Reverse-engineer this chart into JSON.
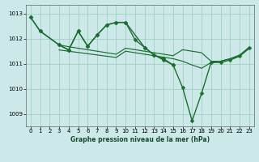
{
  "background_color": "#cce8e8",
  "grid_color": "#99ccbb",
  "line_color": "#1a6e2e",
  "title": "Graphe pression niveau de la mer (hPa)",
  "xlim": [
    -0.5,
    23.5
  ],
  "ylim": [
    1008.5,
    1013.35
  ],
  "yticks": [
    1009,
    1010,
    1011,
    1012,
    1013
  ],
  "xticks": [
    0,
    1,
    2,
    3,
    4,
    5,
    6,
    7,
    8,
    9,
    10,
    11,
    12,
    13,
    14,
    15,
    16,
    17,
    18,
    19,
    20,
    21,
    22,
    23
  ],
  "series": [
    {
      "x": [
        0,
        1,
        3,
        4,
        5,
        6,
        7,
        8,
        9,
        10,
        12,
        13,
        14,
        15
      ],
      "y": [
        1012.85,
        1012.3,
        1011.75,
        1011.55,
        1012.3,
        1011.7,
        1012.15,
        1012.55,
        1012.65,
        1012.65,
        1011.65,
        1011.35,
        1011.2,
        1010.95
      ],
      "marker": "D",
      "markersize": 2.5,
      "linewidth": 1.0
    },
    {
      "x": [
        3,
        4,
        5,
        6,
        7,
        8,
        9,
        10,
        11,
        12,
        13,
        14,
        15,
        16,
        17,
        18,
        19,
        20,
        21,
        22,
        23
      ],
      "y": [
        1011.75,
        1011.68,
        1011.62,
        1011.56,
        1011.5,
        1011.44,
        1011.38,
        1011.62,
        1011.56,
        1011.5,
        1011.44,
        1011.38,
        1011.32,
        1011.56,
        1011.5,
        1011.44,
        1011.1,
        1011.1,
        1011.2,
        1011.35,
        1011.65
      ],
      "marker": null,
      "markersize": 0,
      "linewidth": 0.85
    },
    {
      "x": [
        3,
        4,
        5,
        6,
        7,
        8,
        9,
        10,
        11,
        12,
        13,
        14,
        15,
        16,
        17,
        18,
        19,
        20,
        21,
        22,
        23
      ],
      "y": [
        1011.55,
        1011.5,
        1011.45,
        1011.4,
        1011.35,
        1011.3,
        1011.25,
        1011.5,
        1011.44,
        1011.38,
        1011.32,
        1011.26,
        1011.2,
        1011.1,
        1010.95,
        1010.82,
        1011.05,
        1011.1,
        1011.2,
        1011.3,
        1011.6
      ],
      "marker": null,
      "markersize": 0,
      "linewidth": 0.85
    },
    {
      "x": [
        0,
        1,
        3,
        4,
        5,
        6,
        7,
        8,
        9,
        10,
        11,
        12,
        13,
        14,
        15,
        16,
        17,
        18,
        19,
        20,
        21,
        22,
        23
      ],
      "y": [
        1012.85,
        1012.3,
        1011.75,
        1011.55,
        1012.3,
        1011.7,
        1012.15,
        1012.55,
        1012.65,
        1012.65,
        1011.95,
        1011.65,
        1011.35,
        1011.15,
        1010.95,
        1010.05,
        1008.72,
        1009.82,
        1011.05,
        1011.05,
        1011.15,
        1011.3,
        1011.65
      ],
      "marker": "D",
      "markersize": 2.5,
      "linewidth": 1.0
    }
  ]
}
